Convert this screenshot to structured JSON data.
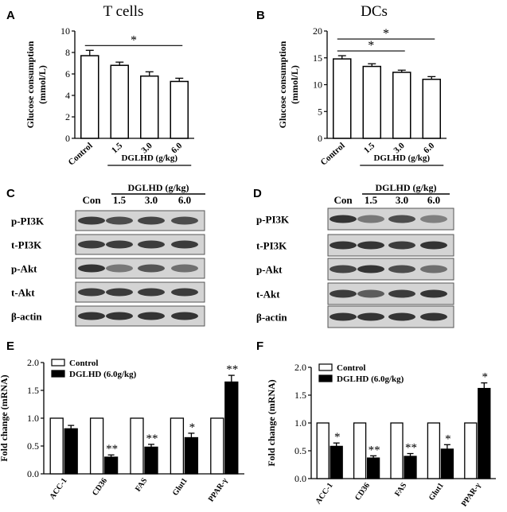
{
  "colors": {
    "bar_control": "#ffffff",
    "bar_treated": "#000000",
    "axis": "#000000",
    "blot_bg": "#d4d4d4",
    "band": "#2b2b2b"
  },
  "panels": {
    "A": {
      "letter": "A"
    },
    "B": {
      "letter": "B"
    },
    "C": {
      "letter": "C",
      "header": "DGLHD  (g/kg)",
      "lanes": [
        "Con",
        "1.5",
        "3.0",
        "6.0"
      ],
      "rows": [
        "p-PI3K",
        "t-PI3K",
        "p-Akt",
        "t-Akt",
        "β-actin"
      ]
    },
    "D": {
      "letter": "D",
      "header": "DGLHD  (g/kg)",
      "lanes": [
        "Con",
        "1.5",
        "3.0",
        "6.0"
      ],
      "rows": [
        "p-PI3K",
        "t-PI3K",
        "p-Akt",
        "t-Akt",
        "β-actin"
      ]
    },
    "E": {
      "letter": "E"
    },
    "F": {
      "letter": "F"
    }
  },
  "chart_data": [
    {
      "id": "A",
      "type": "bar",
      "title": "T cells",
      "ylabel": "Glucose consumption (mmol/L)",
      "categories": [
        "Control",
        "1.5",
        "3.0",
        "6.0"
      ],
      "group_label": "DGLHD (g/kg)",
      "values": [
        7.7,
        6.8,
        5.8,
        5.3
      ],
      "errors": [
        0.5,
        0.3,
        0.4,
        0.3
      ],
      "ylim": [
        0,
        10
      ],
      "yticks": [
        "0",
        "2",
        "4",
        "6",
        "8",
        "10"
      ],
      "significance": [
        {
          "from": 0,
          "to": 3,
          "label": "*"
        }
      ]
    },
    {
      "id": "B",
      "type": "bar",
      "title": "DCs",
      "ylabel": "Glucose consumption (mmol/L)",
      "categories": [
        "Control",
        "1.5",
        "3.0",
        "6.0"
      ],
      "group_label": "DGLHD (g/kg)",
      "values": [
        14.8,
        13.4,
        12.3,
        11.0
      ],
      "errors": [
        0.6,
        0.5,
        0.4,
        0.5
      ],
      "ylim": [
        0,
        20
      ],
      "yticks": [
        "0",
        "5",
        "10",
        "15",
        "20"
      ],
      "significance": [
        {
          "from": 0,
          "to": 2,
          "label": "*"
        },
        {
          "from": 0,
          "to": 3,
          "label": "*"
        }
      ]
    },
    {
      "id": "E",
      "type": "bar",
      "ylabel": "Fold change (mRNA)",
      "categories": [
        "ACC-1",
        "CD36",
        "FAS",
        "Glut1",
        "PPAR-γ"
      ],
      "series": [
        {
          "name": "Control",
          "values": [
            1.0,
            1.0,
            1.0,
            1.0,
            1.0
          ]
        },
        {
          "name": "DGLHD (6.0g/kg)",
          "values": [
            0.81,
            0.3,
            0.48,
            0.65,
            1.65
          ],
          "errors": [
            0.06,
            0.04,
            0.05,
            0.08,
            0.12
          ],
          "marks": [
            "",
            "**",
            "**",
            "*",
            "**"
          ]
        }
      ],
      "ylim": [
        0,
        2.0
      ],
      "yticks": [
        "0.0",
        "0.5",
        "1.0",
        "1.5",
        "2.0"
      ],
      "legend": "top-left"
    },
    {
      "id": "F",
      "type": "bar",
      "ylabel": "Fold change (mRNA)",
      "categories": [
        "ACC-1",
        "CD36",
        "FAS",
        "Glut1",
        "PPAR-γ"
      ],
      "series": [
        {
          "name": "Control",
          "values": [
            1.0,
            1.0,
            1.0,
            1.0,
            1.0
          ]
        },
        {
          "name": "DGLHD (6.0g/kg)",
          "values": [
            0.58,
            0.37,
            0.4,
            0.53,
            1.62
          ],
          "errors": [
            0.06,
            0.04,
            0.05,
            0.08,
            0.1
          ],
          "marks": [
            "*",
            "**",
            "**",
            "*",
            "*"
          ]
        }
      ],
      "ylim": [
        0,
        2.0
      ],
      "yticks": [
        "0.0",
        "0.5",
        "1.0",
        "1.5",
        "2.0"
      ],
      "legend": "top-left"
    }
  ]
}
